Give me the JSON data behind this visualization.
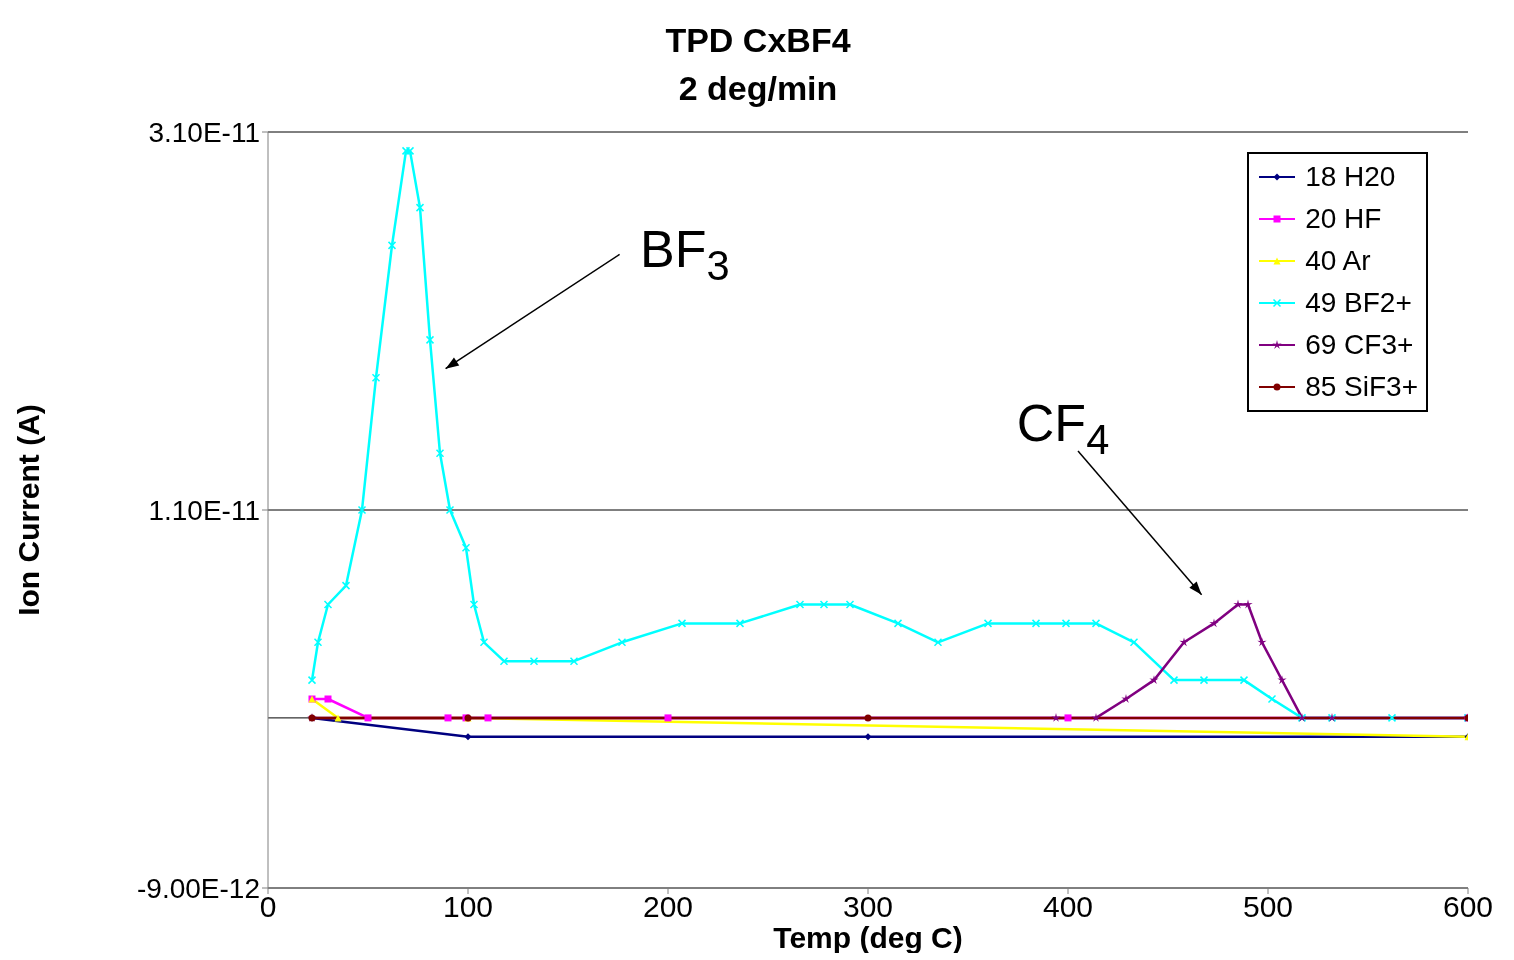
{
  "chart_data": {
    "type": "line",
    "title": "TPD CxBF4",
    "subtitle": "2 deg/min",
    "xlabel": "Temp (deg C)",
    "ylabel": "Ion Current (A)",
    "xlim": [
      0,
      600
    ],
    "xticks": [
      0,
      100,
      200,
      300,
      400,
      500,
      600
    ],
    "ylim": [
      -9e-12,
      3.1e-11
    ],
    "yticks": [
      {
        "value": -9e-12,
        "label": "-9.00E-12"
      },
      {
        "value": 1.1e-11,
        "label": "1.10E-11"
      },
      {
        "value": 3.1e-11,
        "label": "3.10E-11"
      }
    ],
    "grid": "y",
    "legend": "top right",
    "line_style": "solid",
    "ref_lines": [
      {
        "axis": "y",
        "value": 0,
        "color": "#000000"
      }
    ],
    "annotations": [
      "BF$_{3}$",
      "CF$_{4}$"
    ],
    "series": [
      {
        "name": "18 H20",
        "color": "#000080",
        "marker": "diamond",
        "x": [
          22,
          100,
          300,
          600
        ],
        "values": [
          0,
          -1e-12,
          -1e-12,
          -1e-12
        ]
      },
      {
        "name": "20 HF",
        "color": "#ff00ff",
        "marker": "square",
        "x": [
          22,
          30,
          50,
          90,
          99,
          110,
          200,
          400,
          600
        ],
        "values": [
          1e-12,
          1e-12,
          0,
          0,
          0,
          0,
          0,
          0,
          0
        ]
      },
      {
        "name": "40 Ar",
        "color": "#ffff00",
        "marker": "triangle",
        "x": [
          22,
          35,
          100,
          600
        ],
        "values": [
          1e-12,
          0,
          0,
          -1e-12
        ]
      },
      {
        "name": "49 BF2+",
        "color": "#00ffff",
        "marker": "cross",
        "x": [
          22,
          25,
          30,
          39,
          47,
          54,
          62,
          69,
          71,
          76,
          81,
          86,
          91,
          99,
          103,
          108,
          118,
          133,
          153,
          177,
          207,
          236,
          266,
          278,
          291,
          315,
          335,
          360,
          384,
          399,
          414,
          433,
          453,
          468,
          488,
          502,
          517,
          532,
          562,
          600
        ],
        "values": [
          2e-12,
          4e-12,
          6e-12,
          7e-12,
          1.1e-11,
          1.8e-11,
          2.5e-11,
          3e-11,
          3e-11,
          2.7e-11,
          2e-11,
          1.4e-11,
          1.1e-11,
          9e-12,
          6e-12,
          4e-12,
          3e-12,
          3e-12,
          3e-12,
          4e-12,
          5e-12,
          5e-12,
          6e-12,
          6e-12,
          6e-12,
          5e-12,
          4e-12,
          5e-12,
          5e-12,
          5e-12,
          5e-12,
          4e-12,
          2e-12,
          2e-12,
          2e-12,
          1e-12,
          0,
          0,
          0,
          0
        ]
      },
      {
        "name": "69 CF3+",
        "color": "#800080",
        "marker": "star",
        "x": [
          22,
          394,
          414,
          429,
          443,
          458,
          473,
          485,
          490,
          497,
          507,
          517,
          532,
          600
        ],
        "values": [
          0,
          0,
          0,
          1e-12,
          2e-12,
          4e-12,
          5e-12,
          6e-12,
          6e-12,
          4e-12,
          2e-12,
          0,
          0,
          0
        ]
      },
      {
        "name": "85 SiF3+",
        "color": "#800000",
        "marker": "circle",
        "x": [
          22,
          100,
          300,
          600
        ],
        "values": [
          0,
          0,
          0,
          0
        ]
      }
    ]
  }
}
